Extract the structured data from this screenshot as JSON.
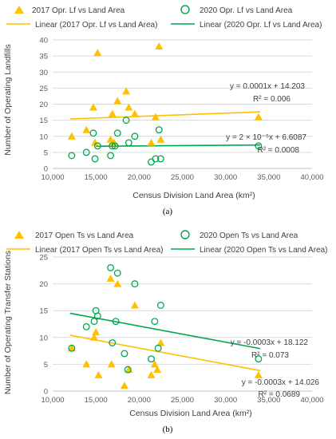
{
  "chart_data": [
    {
      "type": "scatter",
      "caption": "(a)",
      "xlabel": "Census Division Land Area (km²)",
      "ylabel": "Number of Operating Landfills",
      "xlim": [
        10000,
        40000
      ],
      "ylim": [
        0,
        40
      ],
      "xticks": [
        "10,000",
        "15,000",
        "20,000",
        "25,000",
        "30,000",
        "35,000",
        "40,000"
      ],
      "yticks": [
        "0",
        "5",
        "10",
        "15",
        "20",
        "25",
        "30",
        "35",
        "40"
      ],
      "grid": true,
      "legend_position": "top",
      "series": [
        {
          "name": "2017 Opr. Lf vs Land Area",
          "marker": "triangle",
          "color": "#FFC000",
          "points": [
            [
              12200,
              10
            ],
            [
              13900,
              12
            ],
            [
              14700,
              19
            ],
            [
              14900,
              8
            ],
            [
              15200,
              36
            ],
            [
              16700,
              9
            ],
            [
              16900,
              17
            ],
            [
              17100,
              8
            ],
            [
              17500,
              21
            ],
            [
              18500,
              24
            ],
            [
              18800,
              19
            ],
            [
              19500,
              17
            ],
            [
              21400,
              8
            ],
            [
              21900,
              16
            ],
            [
              22300,
              38
            ],
            [
              22500,
              9
            ],
            [
              33800,
              16
            ]
          ]
        },
        {
          "name": "2020 Opr. Lf vs Land Area",
          "marker": "circle-open",
          "color": "#00A650",
          "points": [
            [
              12200,
              4
            ],
            [
              13900,
              5
            ],
            [
              14700,
              11
            ],
            [
              14900,
              3
            ],
            [
              15200,
              7
            ],
            [
              16700,
              4
            ],
            [
              16900,
              7
            ],
            [
              17200,
              7
            ],
            [
              17500,
              11
            ],
            [
              18500,
              15
            ],
            [
              18800,
              8
            ],
            [
              19500,
              10
            ],
            [
              21400,
              2
            ],
            [
              21900,
              3
            ],
            [
              22300,
              12
            ],
            [
              22500,
              3
            ],
            [
              33800,
              7
            ]
          ]
        }
      ],
      "trendlines": [
        {
          "name": "Linear (2017 Opr. Lf vs Land Area)",
          "color": "#FFC000",
          "slope": 0.0001,
          "intercept": 14.203,
          "x_range": [
            12000,
            34000
          ],
          "equation": "y = 0.0001x + 14.203",
          "r2": "R² = 0.006"
        },
        {
          "name": "Linear (2020 Opr. Lf vs Land Area)",
          "color": "#00A650",
          "slope": 2e-05,
          "intercept": 6.6087,
          "x_range": [
            15000,
            34000
          ],
          "equation": "y = 2 × 10⁻⁵x + 6.6087",
          "r2": "R² = 0.0008"
        }
      ]
    },
    {
      "type": "scatter",
      "caption": "(b)",
      "xlabel": "Census Division Land Area (km²)",
      "ylabel": "Number of Operating Transfer Stations",
      "xlim": [
        10000,
        40000
      ],
      "ylim": [
        0,
        25
      ],
      "xticks": [
        "10,000",
        "15,000",
        "20,000",
        "25,000",
        "30,000",
        "35,000",
        "40,000"
      ],
      "yticks": [
        "0",
        "5",
        "10",
        "15",
        "20",
        "25"
      ],
      "grid": true,
      "legend_position": "top",
      "series": [
        {
          "name": "2017 Open Ts vs Land Area",
          "marker": "triangle",
          "color": "#FFC000",
          "points": [
            [
              12200,
              8
            ],
            [
              13900,
              5
            ],
            [
              14800,
              10
            ],
            [
              15000,
              11
            ],
            [
              15300,
              3
            ],
            [
              16700,
              21
            ],
            [
              16800,
              5
            ],
            [
              17500,
              20
            ],
            [
              18300,
              1
            ],
            [
              18800,
              4
            ],
            [
              19500,
              16
            ],
            [
              21400,
              3
            ],
            [
              21800,
              5
            ],
            [
              22100,
              4
            ],
            [
              22500,
              9
            ],
            [
              33800,
              3
            ]
          ]
        },
        {
          "name": "2020 Open Ts vs Land Area",
          "marker": "circle-open",
          "color": "#00A650",
          "points": [
            [
              12200,
              8
            ],
            [
              13900,
              12
            ],
            [
              14800,
              13
            ],
            [
              15000,
              15
            ],
            [
              15200,
              14
            ],
            [
              16700,
              23
            ],
            [
              16900,
              9
            ],
            [
              17300,
              13
            ],
            [
              17500,
              22
            ],
            [
              18300,
              7
            ],
            [
              18700,
              4
            ],
            [
              19500,
              20
            ],
            [
              21400,
              6
            ],
            [
              21800,
              13
            ],
            [
              22200,
              8
            ],
            [
              22500,
              16
            ],
            [
              33800,
              6
            ]
          ]
        }
      ],
      "trendlines": [
        {
          "name": "Linear (2017 Open Ts vs Land Area)",
          "color": "#FFC000",
          "slope": -0.0003,
          "intercept": 14.026,
          "x_range": [
            12000,
            34000
          ],
          "equation": "y = -0.0003x + 14.026",
          "r2": "R² = 0.0689"
        },
        {
          "name": "Linear (2020 Open Ts vs Land Area)",
          "color": "#00A650",
          "slope": -0.0003,
          "intercept": 18.122,
          "x_range": [
            12000,
            34000
          ],
          "equation": "y = -0.0003x + 18.122",
          "r2": "R² = 0.073"
        }
      ]
    }
  ]
}
